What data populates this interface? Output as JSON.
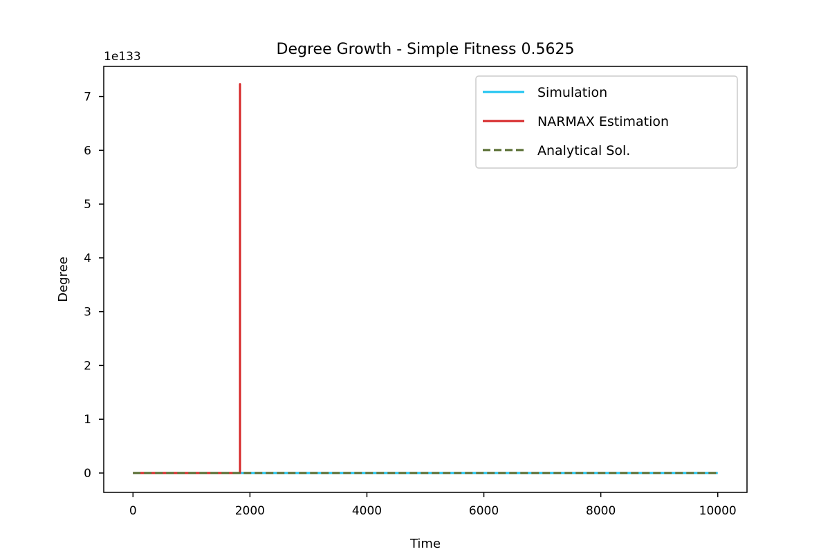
{
  "chart_data": {
    "type": "line",
    "title": "Degree Growth - Simple Fitness 0.5625",
    "xlabel": "Time",
    "ylabel": "Degree",
    "y_scale_label": "1e133",
    "xlim": [
      -500,
      10500
    ],
    "ylim": [
      -0.36,
      7.56
    ],
    "y_multiplier": "1e133",
    "x_ticks": [
      0,
      2000,
      4000,
      6000,
      8000,
      10000
    ],
    "x_tick_labels": [
      "0",
      "2000",
      "4000",
      "6000",
      "8000",
      "10000"
    ],
    "y_ticks": [
      0,
      1,
      2,
      3,
      4,
      5,
      6,
      7
    ],
    "y_tick_labels": [
      "0",
      "1",
      "2",
      "3",
      "4",
      "5",
      "6",
      "7"
    ],
    "grid": false,
    "legend_position": "top-right",
    "series": [
      {
        "name": "Simulation",
        "color": "#1ec3f0",
        "dash": "solid",
        "x": [
          0,
          10000
        ],
        "y": [
          0,
          0
        ]
      },
      {
        "name": "NARMAX Estimation",
        "color": "#d62728",
        "dash": "solid",
        "x": [
          0,
          1830,
          1830,
          1830
        ],
        "y": [
          0,
          0,
          7.23,
          0
        ]
      },
      {
        "name": "Analytical Sol.",
        "color": "#556b2f",
        "dash": "dashed",
        "x": [
          0,
          10000
        ],
        "y": [
          0,
          0
        ]
      }
    ]
  }
}
